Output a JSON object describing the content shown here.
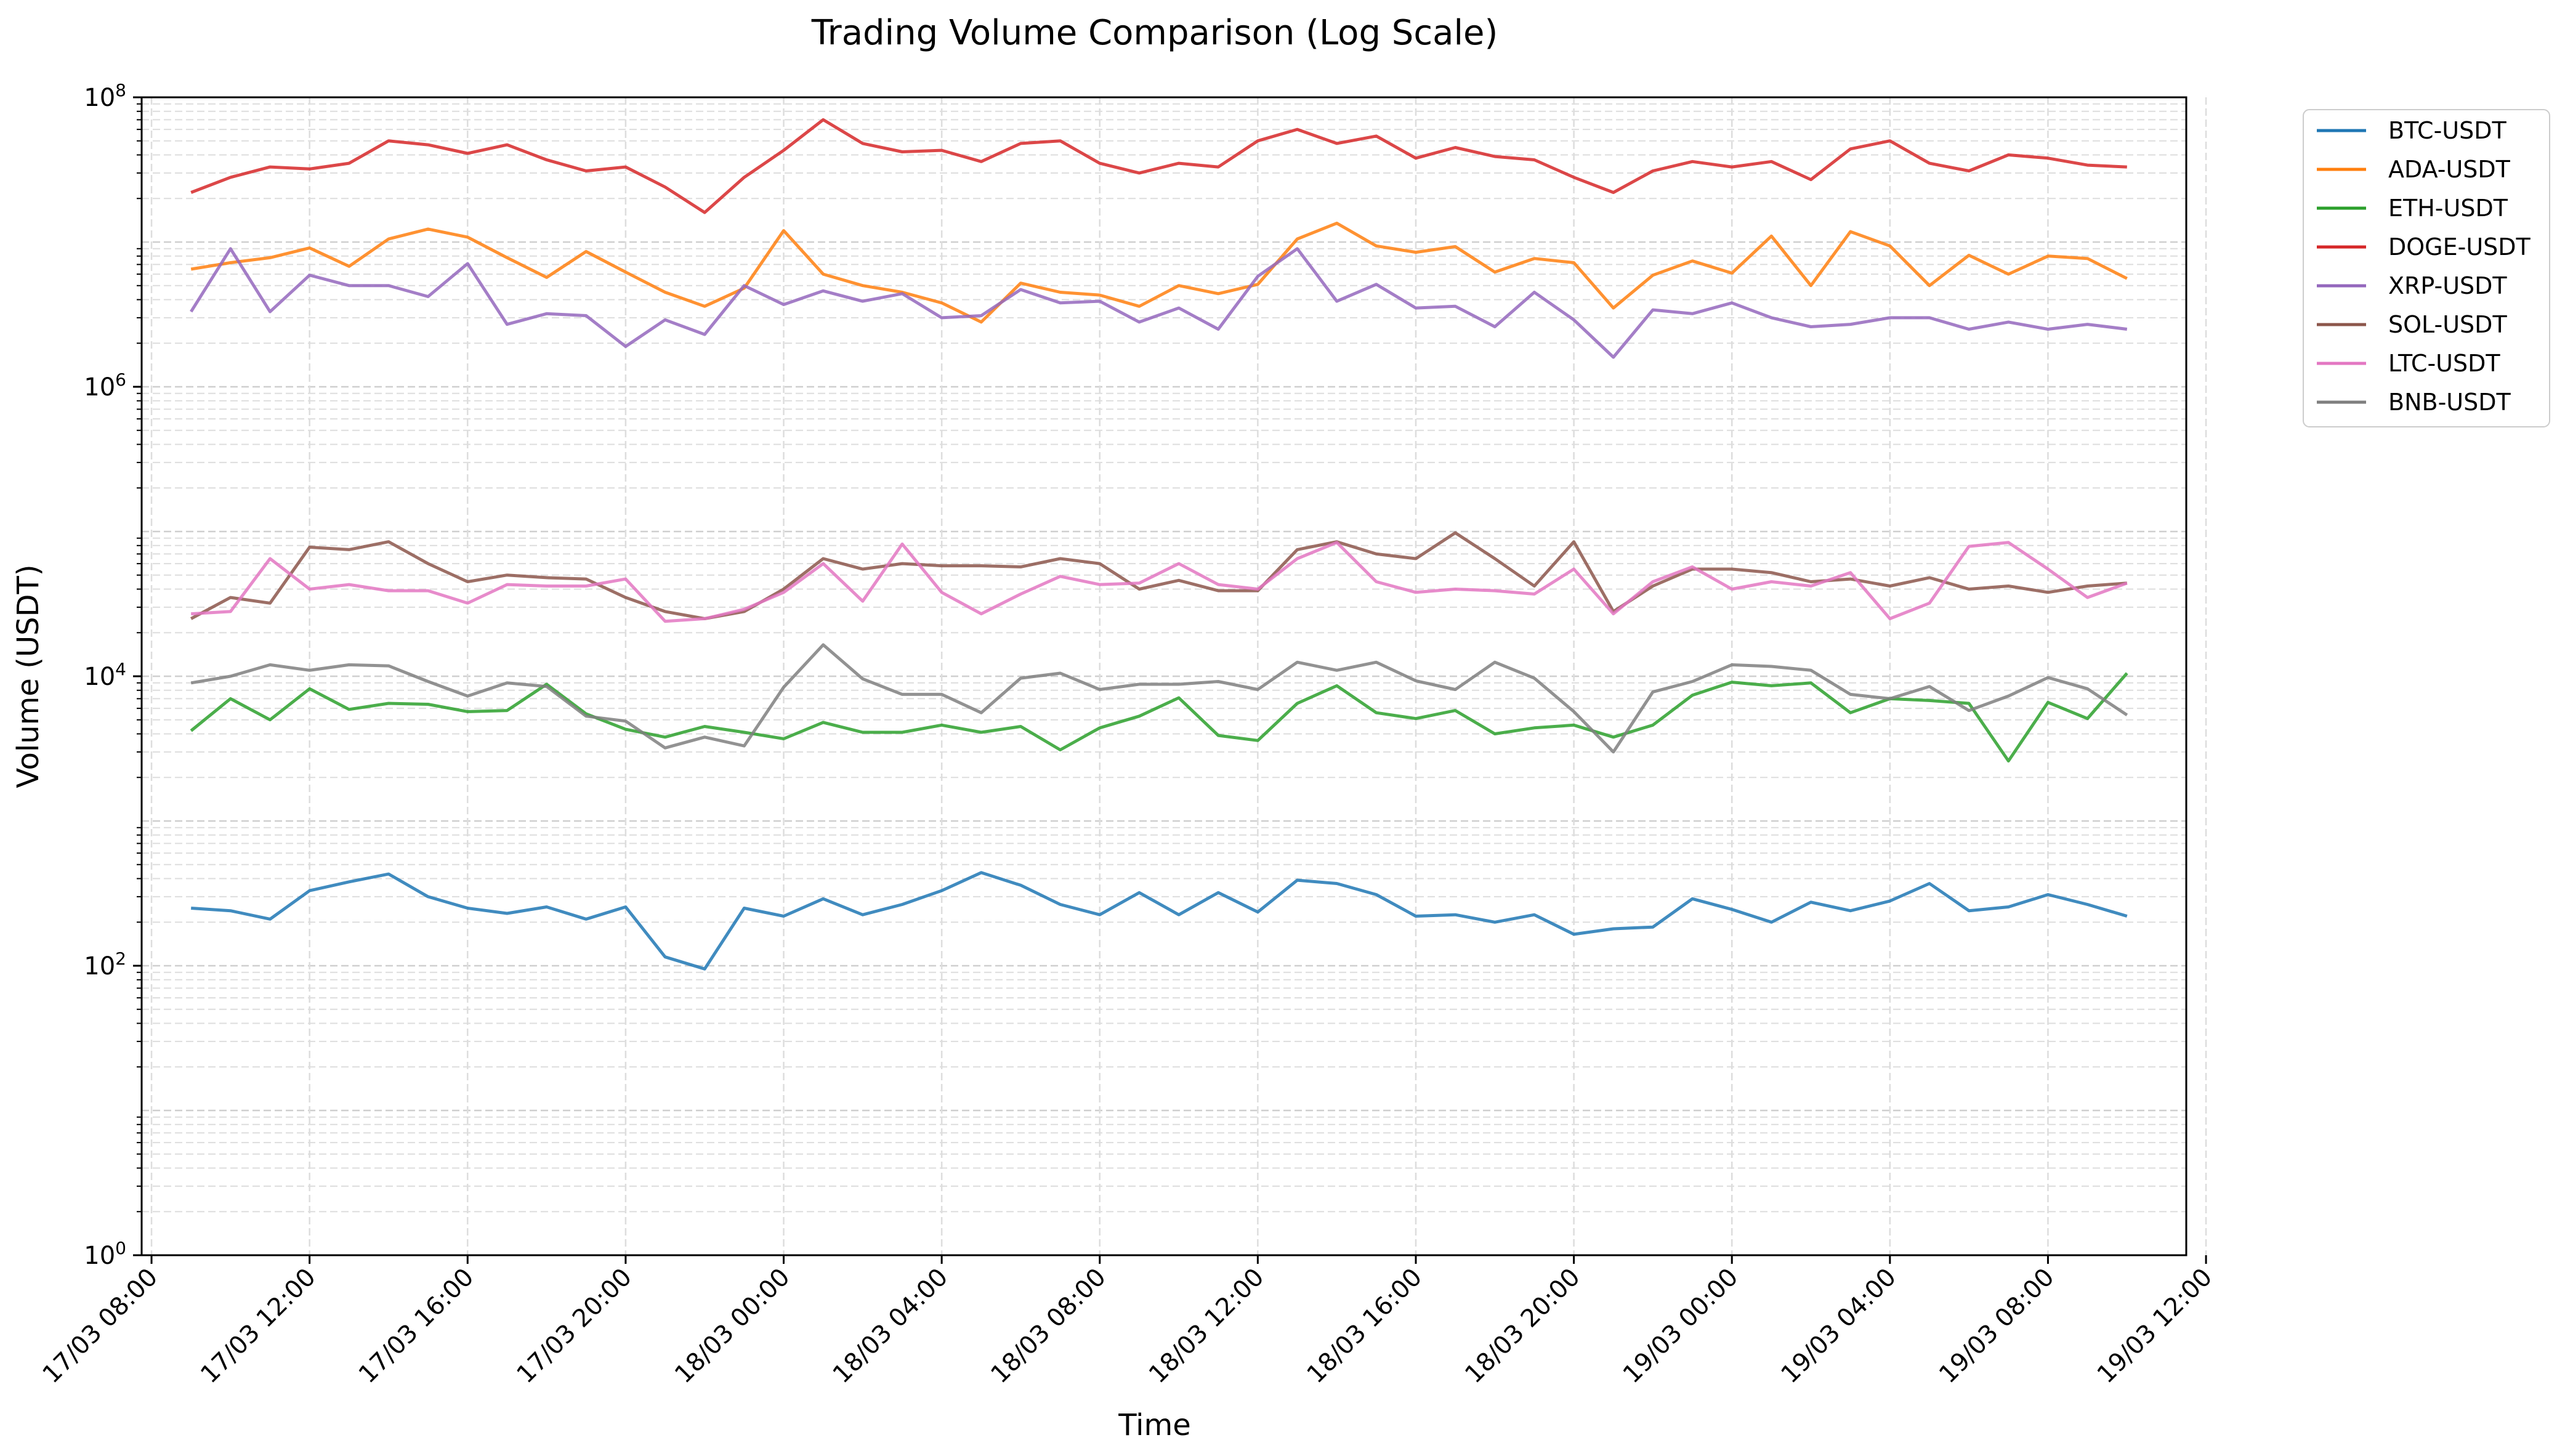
{
  "chart_data": {
    "type": "line",
    "title": "Trading Volume Comparison (Log Scale)",
    "xlabel": "Time",
    "ylabel": "Volume (USDT)",
    "yscale": "log",
    "ylim": [
      1,
      100000000
    ],
    "x_tick_labels": [
      "17/03 08:00",
      "17/03 12:00",
      "17/03 16:00",
      "17/03 20:00",
      "18/03 00:00",
      "18/03 04:00",
      "18/03 08:00",
      "18/03 12:00",
      "18/03 16:00",
      "18/03 20:00",
      "19/03 00:00",
      "19/03 04:00",
      "19/03 08:00",
      "19/03 12:00"
    ],
    "y_tick_labels": [
      {
        "mantissa": "10",
        "exp": "0"
      },
      {
        "mantissa": "10",
        "exp": "2"
      },
      {
        "mantissa": "10",
        "exp": "4"
      },
      {
        "mantissa": "10",
        "exp": "6"
      },
      {
        "mantissa": "10",
        "exp": "8"
      }
    ],
    "grid": true,
    "legend_position": "outside-right",
    "x": [
      "17/03 09:00",
      "17/03 10:00",
      "17/03 11:00",
      "17/03 12:00",
      "17/03 13:00",
      "17/03 14:00",
      "17/03 15:00",
      "17/03 16:00",
      "17/03 17:00",
      "17/03 18:00",
      "17/03 19:00",
      "17/03 20:00",
      "17/03 21:00",
      "17/03 22:00",
      "17/03 23:00",
      "18/03 00:00",
      "18/03 01:00",
      "18/03 02:00",
      "18/03 03:00",
      "18/03 04:00",
      "18/03 05:00",
      "18/03 06:00",
      "18/03 07:00",
      "18/03 08:00",
      "18/03 09:00",
      "18/03 10:00",
      "18/03 11:00",
      "18/03 12:00",
      "18/03 13:00",
      "18/03 14:00",
      "18/03 15:00",
      "18/03 16:00",
      "18/03 17:00",
      "18/03 18:00",
      "18/03 19:00",
      "18/03 20:00",
      "18/03 21:00",
      "18/03 22:00",
      "18/03 23:00",
      "19/03 00:00",
      "19/03 01:00",
      "19/03 02:00",
      "19/03 03:00",
      "19/03 04:00",
      "19/03 05:00",
      "19/03 06:00",
      "19/03 07:00",
      "19/03 08:00",
      "19/03 09:00",
      "19/03 10:00"
    ],
    "series": [
      {
        "name": "BTC-USDT",
        "color": "#1f77b4",
        "values": [
          250,
          240,
          210,
          330,
          380,
          430,
          300,
          250,
          230,
          255,
          210,
          255,
          115,
          95,
          250,
          220,
          290,
          225,
          265,
          330,
          440,
          360,
          265,
          225,
          320,
          225,
          320,
          235,
          390,
          370,
          310,
          220,
          225,
          200,
          225,
          165,
          180,
          185,
          290,
          245,
          200,
          275,
          240,
          280,
          370,
          240,
          255,
          310,
          265,
          220
        ]
      },
      {
        "name": "ADA-USDT",
        "color": "#ff7f0e",
        "values": [
          6500000,
          7200000,
          7800000,
          9100000,
          6800000,
          10500000,
          12300000,
          10800000,
          7800000,
          5700000,
          8600000,
          6200000,
          4500000,
          3600000,
          4800000,
          12000000,
          6000000,
          5000000,
          4500000,
          3800000,
          2800000,
          5200000,
          4500000,
          4300000,
          3600000,
          5000000,
          4400000,
          5100000,
          10500000,
          13500000,
          9400000,
          8500000,
          9300000,
          6200000,
          7700000,
          7200000,
          3500000,
          5900000,
          7400000,
          6100000,
          11000000,
          5000000,
          11800000,
          9400000,
          5000000,
          8100000,
          6000000,
          8000000,
          7700000,
          5600000
        ]
      },
      {
        "name": "ETH-USDT",
        "color": "#2ca02c",
        "values": [
          4200,
          7000,
          5000,
          8200,
          5900,
          6500,
          6400,
          5700,
          5800,
          8800,
          5500,
          4300,
          3800,
          4500,
          4100,
          3700,
          4800,
          4100,
          4100,
          4600,
          4100,
          4500,
          3100,
          4400,
          5300,
          7100,
          3900,
          3600,
          6500,
          8600,
          5600,
          5100,
          5800,
          4000,
          4400,
          4600,
          3800,
          4600,
          7400,
          9100,
          8600,
          9000,
          5600,
          7000,
          6800,
          6500,
          2600,
          6600,
          5100,
          10500
        ]
      },
      {
        "name": "DOGE-USDT",
        "color": "#d62728",
        "values": [
          22000000,
          28000000,
          33000000,
          32000000,
          35000000,
          50000000,
          47000000,
          41000000,
          47000000,
          37000000,
          31000000,
          33000000,
          24000000,
          16000000,
          28000000,
          43000000,
          70000000,
          48000000,
          42000000,
          43000000,
          36000000,
          48000000,
          50000000,
          35000000,
          30000000,
          35000000,
          33000000,
          50000000,
          60000000,
          48000000,
          54000000,
          38000000,
          45000000,
          39000000,
          37000000,
          28000000,
          22000000,
          31000000,
          36000000,
          33000000,
          36000000,
          27000000,
          44000000,
          50000000,
          35000000,
          31000000,
          40000000,
          38000000,
          34000000,
          33000000
        ]
      },
      {
        "name": "XRP-USDT",
        "color": "#9467bd",
        "values": [
          3300000,
          9000000,
          3300000,
          5900000,
          5000000,
          5000000,
          4200000,
          7100000,
          2700000,
          3200000,
          3100000,
          1900000,
          2900000,
          2300000,
          5000000,
          3700000,
          4600000,
          3900000,
          4400000,
          3000000,
          3100000,
          4700000,
          3800000,
          3900000,
          2800000,
          3500000,
          2500000,
          5800000,
          9000000,
          3900000,
          5100000,
          3500000,
          3600000,
          2600000,
          4500000,
          2900000,
          1600000,
          3400000,
          3200000,
          3800000,
          3000000,
          2600000,
          2700000,
          3000000,
          3000000,
          2500000,
          2800000,
          2500000,
          2700000,
          2500000
        ]
      },
      {
        "name": "SOL-USDT",
        "color": "#8c564b",
        "values": [
          25000,
          35000,
          32000,
          78000,
          75000,
          85000,
          60000,
          45000,
          50000,
          48000,
          47000,
          35000,
          28000,
          25000,
          28000,
          40000,
          65000,
          55000,
          60000,
          58000,
          58000,
          57000,
          65000,
          60000,
          40000,
          46000,
          39000,
          39000,
          75000,
          85000,
          70000,
          65000,
          98000,
          65000,
          42000,
          85000,
          28000,
          42000,
          55000,
          55000,
          52000,
          45000,
          47000,
          42000,
          48000,
          40000,
          42000,
          38000,
          42000,
          44000
        ]
      },
      {
        "name": "LTC-USDT",
        "color": "#e377c2",
        "values": [
          27000,
          28000,
          65000,
          40000,
          43000,
          39000,
          39000,
          32000,
          43000,
          42000,
          42000,
          47000,
          24000,
          25000,
          29000,
          38000,
          60000,
          33000,
          82000,
          38000,
          27000,
          37000,
          49000,
          43000,
          44000,
          60000,
          43000,
          40000,
          65000,
          84000,
          45000,
          38000,
          40000,
          39000,
          37000,
          55000,
          27000,
          45000,
          57000,
          40000,
          45000,
          42000,
          52000,
          25000,
          32000,
          79000,
          84000,
          55000,
          35000,
          44000
        ]
      },
      {
        "name": "BNB-USDT",
        "color": "#7f7f7f",
        "values": [
          9000,
          10000,
          12000,
          11000,
          12000,
          11800,
          9200,
          7300,
          9000,
          8500,
          5300,
          4900,
          3200,
          3800,
          3300,
          8400,
          16500,
          9600,
          7500,
          7500,
          5600,
          9700,
          10500,
          8100,
          8800,
          8800,
          9200,
          8100,
          12500,
          11000,
          12500,
          9300,
          8100,
          12500,
          9700,
          5700,
          3000,
          7800,
          9200,
          12000,
          11700,
          11000,
          7500,
          7000,
          8500,
          5800,
          7300,
          9800,
          8200,
          5400
        ]
      }
    ]
  }
}
